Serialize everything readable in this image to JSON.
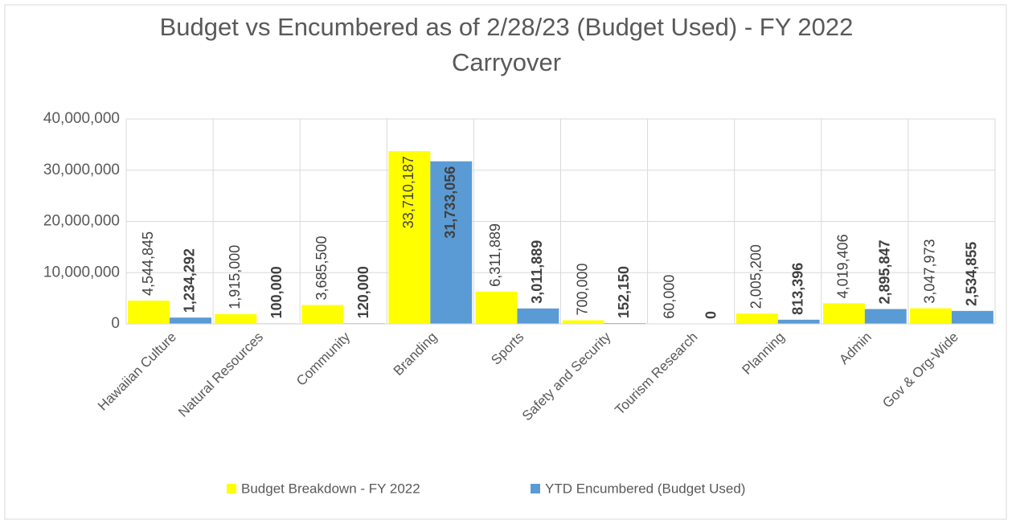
{
  "chart_data": {
    "type": "bar",
    "title": "Budget vs Encumbered as of 2/28/23 (Budget Used) - FY 2022 Carryover",
    "categories": [
      "Hawaiian Culture",
      "Natural Resources",
      "Community",
      "Branding",
      "Sports",
      "Safety and Security",
      "Tourism Research",
      "Planning",
      "Admin",
      "Gov & Org-Wide"
    ],
    "series": [
      {
        "name": "Budget Breakdown - FY 2022",
        "color": "#ffff00",
        "values": [
          4544845,
          1915000,
          3685500,
          33710187,
          6311889,
          700000,
          60000,
          2005200,
          4019406,
          3047973
        ],
        "value_labels": [
          "4,544,845",
          "1,915,000",
          "3,685,500",
          "33,710,187",
          "6,311,889",
          "700,000",
          "60,000",
          "2,005,200",
          "4,019,406",
          "3,047,973"
        ]
      },
      {
        "name": "YTD Encumbered (Budget Used)",
        "color": "#5b9bd5",
        "values": [
          1234292,
          100000,
          120000,
          31733056,
          3011889,
          152150,
          0,
          813396,
          2895847,
          2534855
        ],
        "value_labels": [
          "1,234,292",
          "100,000",
          "120,000",
          "31,733,056",
          "3,011,889",
          "152,150",
          "0",
          "813,396",
          "2,895,847",
          "2,534,855"
        ]
      }
    ],
    "ylim": [
      0,
      40000000
    ],
    "yticks": [
      0,
      {
        "value": 10000000,
        "label": "10,000,000"
      },
      {
        "value": 20000000,
        "label": "20,000,000"
      },
      {
        "value": 30000000,
        "label": "30,000,000"
      },
      {
        "value": 40000000,
        "label": "40,000,000"
      }
    ],
    "grid": true,
    "legend": "bottom"
  }
}
